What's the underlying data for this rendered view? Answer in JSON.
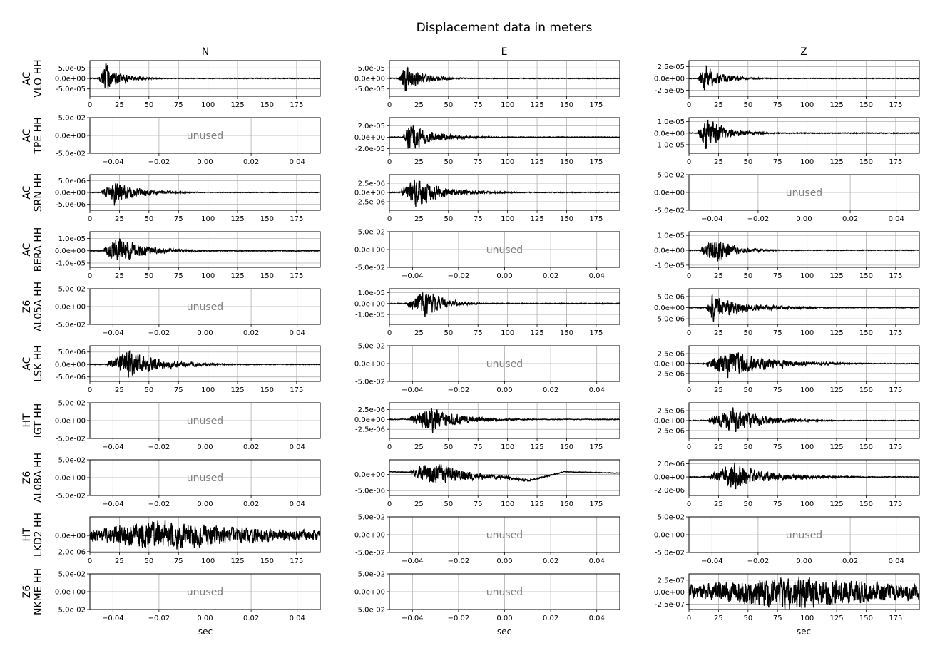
{
  "chart_data": {
    "type": "line",
    "title": "Displacement data in meters",
    "xlabel": "sec",
    "columns": [
      "N",
      "E",
      "Z"
    ],
    "grid": true,
    "line_color": "#000000",
    "unused_color": "#808080",
    "unused_label": "unused",
    "unused_xticks": [
      "−0.04",
      "−0.02",
      "0.00",
      "0.02",
      "0.04"
    ],
    "unused_yticks": [
      "5.0e-02",
      "0.0e+00",
      "-5.0e-02"
    ],
    "unused_xlim": [
      -0.05,
      0.05
    ],
    "unused_ylim": [
      -0.05,
      0.05
    ],
    "data_xticks": [
      "0",
      "25",
      "50",
      "75",
      "100",
      "125",
      "150",
      "175"
    ],
    "data_xlim": [
      0,
      195
    ],
    "rows": [
      {
        "net": "AC",
        "sta": "VLO HH",
        "panels": [
          {
            "used": true,
            "ylim": [
              -8.5e-05,
              8.5e-05
            ],
            "yticks": [
              {
                "v": 5e-05,
                "label": "5.0e-05"
              },
              {
                "v": 0,
                "label": "0.0e+00"
              },
              {
                "v": -5e-05,
                "label": "-5.0e-05"
              }
            ],
            "onset": 8,
            "peak_t": 14,
            "peak_amp": 7.5e-05,
            "decay": 14,
            "seed": 11
          },
          {
            "used": true,
            "ylim": [
              -8.5e-05,
              8.5e-05
            ],
            "yticks": [
              {
                "v": 5e-05,
                "label": "5.0e-05"
              },
              {
                "v": 0,
                "label": "0.0e+00"
              },
              {
                "v": -5e-05,
                "label": "-5.0e-05"
              }
            ],
            "onset": 8,
            "peak_t": 14,
            "peak_amp": 7.2e-05,
            "decay": 16,
            "seed": 12
          },
          {
            "used": true,
            "ylim": [
              -3.8e-05,
              3.8e-05
            ],
            "yticks": [
              {
                "v": 2.5e-05,
                "label": "2.5e-05"
              },
              {
                "v": 0,
                "label": "0.0e+00"
              },
              {
                "v": -2.5e-05,
                "label": "-2.5e-05"
              }
            ],
            "onset": 8,
            "peak_t": 14,
            "peak_amp": 3.2e-05,
            "decay": 16,
            "seed": 13
          }
        ]
      },
      {
        "net": "AC",
        "sta": "TPE HH",
        "panels": [
          {
            "used": false
          },
          {
            "used": true,
            "ylim": [
              -2.8e-05,
              3.4e-05
            ],
            "yticks": [
              {
                "v": 2e-05,
                "label": "2.0e-05"
              },
              {
                "v": 0,
                "label": "0.0e+00"
              },
              {
                "v": -2e-05,
                "label": "-2.0e-05"
              }
            ],
            "onset": 12,
            "peak_t": 17,
            "peak_amp": 2.9e-05,
            "decay": 22,
            "seed": 21
          },
          {
            "used": true,
            "ylim": [
              -1.75e-05,
              1.35e-05
            ],
            "yticks": [
              {
                "v": 1e-05,
                "label": "1.0e-05"
              },
              {
                "v": 0,
                "label": "0.0e+00"
              },
              {
                "v": -1e-05,
                "label": "-1.0e-05"
              }
            ],
            "onset": 8,
            "peak_t": 15,
            "peak_amp": 1.6e-05,
            "decay": 18,
            "seed": 22
          }
        ]
      },
      {
        "net": "AC",
        "sta": "SRN HH",
        "panels": [
          {
            "used": true,
            "ylim": [
              -7.5e-06,
              7.5e-06
            ],
            "yticks": [
              {
                "v": 5e-06,
                "label": "5.0e-06"
              },
              {
                "v": 0,
                "label": "0.0e+00"
              },
              {
                "v": -5e-06,
                "label": "-5.0e-06"
              }
            ],
            "onset": 10,
            "peak_t": 22,
            "peak_amp": 5.5e-06,
            "decay": 22,
            "seed": 31
          },
          {
            "used": true,
            "ylim": [
              -4.8e-06,
              4.8e-06
            ],
            "yticks": [
              {
                "v": 2.5e-06,
                "label": "2.5e-06"
              },
              {
                "v": 0,
                "label": "0.0e+00"
              },
              {
                "v": -2.5e-06,
                "label": "-2.5e-06"
              }
            ],
            "onset": 10,
            "peak_t": 22,
            "peak_amp": 4.5e-06,
            "decay": 26,
            "seed": 32
          },
          {
            "used": false
          }
        ]
      },
      {
        "net": "AC",
        "sta": "BERA HH",
        "panels": [
          {
            "used": true,
            "ylim": [
              -1.35e-05,
              1.55e-05
            ],
            "yticks": [
              {
                "v": 1e-05,
                "label": "1.0e-05"
              },
              {
                "v": 0,
                "label": "0.0e+00"
              },
              {
                "v": -1e-05,
                "label": "-1.0e-05"
              }
            ],
            "onset": 12,
            "peak_t": 24,
            "peak_amp": 1.4e-05,
            "decay": 22,
            "seed": 41
          },
          {
            "used": false
          },
          {
            "used": true,
            "ylim": [
              -1.15e-05,
              1.25e-05
            ],
            "yticks": [
              {
                "v": 1e-05,
                "label": "1.0e-05"
              },
              {
                "v": 0,
                "label": "0.0e+00"
              },
              {
                "v": -1e-05,
                "label": "-1.0e-05"
              }
            ],
            "onset": 10,
            "peak_t": 23,
            "peak_amp": 1.05e-05,
            "decay": 16,
            "seed": 42
          }
        ]
      },
      {
        "net": "Z6",
        "sta": "AL05A HH",
        "panels": [
          {
            "used": false
          },
          {
            "used": true,
            "ylim": [
              -1.9e-05,
              1.35e-05
            ],
            "yticks": [
              {
                "v": 1e-05,
                "label": "1.0e-05"
              },
              {
                "v": 0,
                "label": "0.0e+00"
              },
              {
                "v": -1e-05,
                "label": "-1.0e-05"
              }
            ],
            "onset": 15,
            "peak_t": 33,
            "peak_amp": 1.6e-05,
            "decay": 14,
            "seed": 51
          },
          {
            "used": true,
            "ylim": [
              -7.5e-06,
              8.5e-06
            ],
            "yticks": [
              {
                "v": 5e-06,
                "label": "5.0e-06"
              },
              {
                "v": 0,
                "label": "0.0e+00"
              },
              {
                "v": -5e-06,
                "label": "-5.0e-06"
              }
            ],
            "onset": 15,
            "peak_t": 20,
            "peak_amp": 6.5e-06,
            "decay": 30,
            "seed": 52
          }
        ]
      },
      {
        "net": "AC",
        "sta": "LSK HH",
        "panels": [
          {
            "used": true,
            "ylim": [
              -6.8e-06,
              7.5e-06
            ],
            "yticks": [
              {
                "v": 5e-06,
                "label": "5.0e-06"
              },
              {
                "v": 0,
                "label": "0.0e+00"
              },
              {
                "v": -5e-06,
                "label": "-5.0e-06"
              }
            ],
            "onset": 15,
            "peak_t": 34,
            "peak_amp": 6.5e-06,
            "decay": 28,
            "seed": 61
          },
          {
            "used": false
          },
          {
            "used": true,
            "ylim": [
              -4.5e-06,
              4.5e-06
            ],
            "yticks": [
              {
                "v": 2.5e-06,
                "label": "2.5e-06"
              },
              {
                "v": 0,
                "label": "0.0e+00"
              },
              {
                "v": -2.5e-06,
                "label": "-2.5e-06"
              }
            ],
            "onset": 15,
            "peak_t": 34,
            "peak_amp": 4.2e-06,
            "decay": 34,
            "seed": 62
          }
        ]
      },
      {
        "net": "HT",
        "sta": "IGT HH",
        "panels": [
          {
            "used": false
          },
          {
            "used": true,
            "ylim": [
              -4.8e-06,
              4.2e-06
            ],
            "yticks": [
              {
                "v": 2.5e-06,
                "label": "2.5e-06"
              },
              {
                "v": 0,
                "label": "0.0e+00"
              },
              {
                "v": -2.5e-06,
                "label": "-2.5e-06"
              }
            ],
            "onset": 17,
            "peak_t": 36,
            "peak_amp": 3.8e-06,
            "decay": 26,
            "seed": 71
          },
          {
            "used": true,
            "ylim": [
              -4.5e-06,
              4.5e-06
            ],
            "yticks": [
              {
                "v": 2.5e-06,
                "label": "2.5e-06"
              },
              {
                "v": 0,
                "label": "0.0e+00"
              },
              {
                "v": -2.5e-06,
                "label": "-2.5e-06"
              }
            ],
            "onset": 17,
            "peak_t": 37,
            "peak_amp": 3.8e-06,
            "decay": 26,
            "seed": 72
          }
        ]
      },
      {
        "net": "Z6",
        "sta": "AL08A HH",
        "panels": [
          {
            "used": false
          },
          {
            "used": true,
            "ylim": [
              -6.5e-06,
              4.5e-06
            ],
            "yticks": [
              {
                "v": 0,
                "label": "0.0e+00"
              },
              {
                "v": -5e-06,
                "label": "-5.0e-06"
              }
            ],
            "onset": 18,
            "peak_t": 38,
            "peak_amp": 4.2e-06,
            "decay": 32,
            "drift": [
              [
                0,
                8e-07
              ],
              [
                30,
                6e-07
              ],
              [
                60,
                -4e-07
              ],
              [
                95,
                -8e-07
              ],
              [
                118,
                -1.9e-06
              ],
              [
                135,
                -4e-07
              ],
              [
                148,
                8e-07
              ],
              [
                195,
                4e-07
              ]
            ],
            "seed": 81
          },
          {
            "used": true,
            "ylim": [
              -2.8e-06,
              2.6e-06
            ],
            "yticks": [
              {
                "v": 2e-06,
                "label": "2.0e-06"
              },
              {
                "v": 0,
                "label": "0.0e+00"
              },
              {
                "v": -2e-06,
                "label": "-2.0e-06"
              }
            ],
            "onset": 18,
            "peak_t": 38,
            "peak_amp": 2.2e-06,
            "decay": 34,
            "seed": 82
          }
        ]
      },
      {
        "net": "HT",
        "sta": "LKD2 HH",
        "panels": [
          {
            "used": true,
            "ylim": [
              -2.1e-06,
              2.3e-06
            ],
            "yticks": [
              {
                "v": 0,
                "label": "0.0e+00"
              },
              {
                "v": -2e-06,
                "label": "-2.0e-06"
              }
            ],
            "onset": 0,
            "peak_t": 60,
            "peak_amp": 1.9e-06,
            "decay": 70,
            "noise": 4.5e-07,
            "seed": 91
          },
          {
            "used": false
          },
          {
            "used": false
          }
        ]
      },
      {
        "net": "Z6",
        "sta": "NKME HH",
        "panels": [
          {
            "used": false
          },
          {
            "used": false
          },
          {
            "used": true,
            "ylim": [
              -3.6e-07,
              3.8e-07
            ],
            "yticks": [
              {
                "v": 2.5e-07,
                "label": "2.5e-07"
              },
              {
                "v": 0,
                "label": "0.0e+00"
              },
              {
                "v": -2.5e-07,
                "label": "-2.5e-07"
              }
            ],
            "onset": 0,
            "peak_t": 88,
            "peak_amp": 3e-07,
            "decay": 80,
            "noise": 1.2e-07,
            "seed": 101
          }
        ]
      }
    ]
  }
}
